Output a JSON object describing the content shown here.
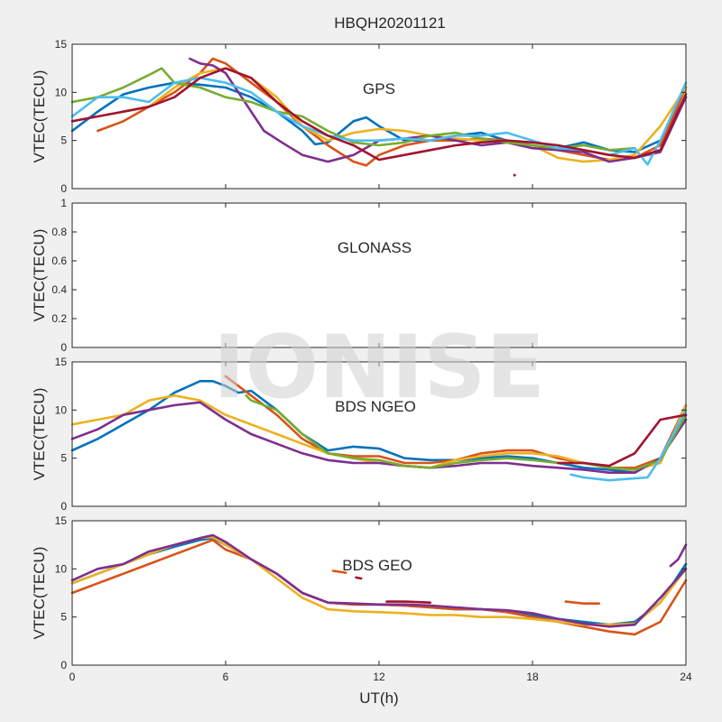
{
  "figure_title": "HBQH20201121",
  "watermark": "IONISE",
  "colors": {
    "blue": "#0072BD",
    "orange": "#D95319",
    "yellow": "#EDB120",
    "purple": "#7E2F8E",
    "green": "#77AC30",
    "cyan": "#4DBEEE",
    "maroon": "#A2142F",
    "background": "#f0f0f0",
    "axes_bg": "#ffffff",
    "watermark": "#cfcfcf"
  },
  "chart_data": [
    {
      "type": "line",
      "id": "gps",
      "title": "GPS",
      "xlabel": "",
      "ylabel": "VTEC(TECU)",
      "xlim": [
        0,
        24
      ],
      "ylim": [
        0,
        15
      ],
      "xticks": [
        0,
        6,
        12,
        18,
        24
      ],
      "xticklabels": [],
      "yticks": [
        0,
        5,
        10,
        15
      ],
      "yticklabels": [
        "0",
        "5",
        "10",
        "15"
      ],
      "series": [
        {
          "color": "blue",
          "x": [
            0,
            1,
            2,
            3,
            4,
            5,
            6,
            7,
            8,
            9,
            9.5,
            10,
            11,
            11.5,
            12,
            13,
            14,
            15,
            16,
            17,
            18,
            19,
            20,
            21,
            22,
            23,
            24
          ],
          "y": [
            6.0,
            8.0,
            9.8,
            10.5,
            11.0,
            10.8,
            10.5,
            9.5,
            8.0,
            6.0,
            4.6,
            4.8,
            7.0,
            7.4,
            6.5,
            5.0,
            5.0,
            5.5,
            5.8,
            5.0,
            4.5,
            4.2,
            4.8,
            4.0,
            3.8,
            5.0,
            9.5
          ]
        },
        {
          "color": "orange",
          "x": [
            1,
            2,
            3,
            4,
            5,
            5.5,
            6,
            7,
            8,
            9,
            10,
            11,
            11.5,
            12,
            13,
            14,
            15,
            16,
            17,
            18,
            19,
            20,
            21,
            22,
            23,
            24
          ],
          "y": [
            6.0,
            7.0,
            8.5,
            10.0,
            12.0,
            13.5,
            13.0,
            11.0,
            9.0,
            6.5,
            4.5,
            2.8,
            2.4,
            3.5,
            4.5,
            5.0,
            5.0,
            5.2,
            5.0,
            4.5,
            4.0,
            3.5,
            3.0,
            3.2,
            4.5,
            10.5
          ]
        },
        {
          "color": "yellow",
          "x": [
            2,
            3,
            4,
            5,
            6,
            7,
            8,
            9,
            10,
            11,
            12,
            13,
            14,
            15,
            16,
            17,
            18,
            19,
            20,
            21,
            22,
            23,
            24
          ],
          "y": [
            8.0,
            8.5,
            10.5,
            12.0,
            12.5,
            11.5,
            9.5,
            6.5,
            5.0,
            5.8,
            6.2,
            6.0,
            5.5,
            5.2,
            5.0,
            4.8,
            4.5,
            3.2,
            2.8,
            3.0,
            3.5,
            6.5,
            10.5
          ]
        },
        {
          "color": "purple",
          "x": [
            4.6,
            5,
            5.5,
            6,
            6.5,
            7,
            7.5,
            8.2,
            9,
            10,
            11,
            12,
            13,
            14,
            15,
            16,
            17,
            18,
            19,
            20,
            21,
            22,
            23,
            24
          ],
          "y": [
            13.5,
            13.0,
            12.8,
            12.0,
            10.0,
            8.0,
            6.0,
            4.8,
            3.5,
            2.8,
            3.5,
            5.0,
            5.2,
            5.5,
            5.0,
            4.5,
            4.8,
            4.2,
            4.0,
            3.8,
            2.8,
            3.2,
            3.8,
            9.5
          ]
        },
        {
          "color": "green",
          "x": [
            0,
            1,
            2,
            3,
            3.5,
            4,
            5,
            6,
            7,
            8,
            9,
            10,
            11,
            12,
            13,
            14,
            15,
            16,
            17,
            18,
            19,
            20,
            21,
            22
          ],
          "y": [
            9.0,
            9.5,
            10.5,
            11.8,
            12.5,
            11.0,
            10.5,
            9.5,
            9.0,
            8.0,
            7.5,
            6.0,
            4.8,
            4.5,
            4.8,
            5.5,
            5.8,
            5.2,
            4.8,
            4.5,
            4.2,
            4.5,
            4.0,
            4.2
          ]
        },
        {
          "color": "cyan",
          "x": [
            0,
            1,
            2,
            3,
            4,
            5,
            6,
            7,
            8,
            9,
            10,
            11,
            12,
            13,
            14,
            15,
            16,
            17,
            18,
            19,
            20,
            21,
            22,
            22.5,
            23,
            24
          ],
          "y": [
            7.5,
            9.5,
            9.5,
            9.0,
            11.0,
            11.5,
            11.0,
            10.0,
            8.0,
            6.5,
            5.5,
            5.0,
            5.0,
            5.2,
            5.0,
            5.5,
            5.5,
            5.8,
            5.0,
            4.2,
            4.0,
            3.5,
            4.2,
            2.5,
            5.0,
            11.0
          ]
        },
        {
          "color": "maroon",
          "x": [
            0,
            1,
            2,
            3,
            4,
            5,
            6,
            7,
            8,
            9,
            10,
            11,
            12,
            13,
            14,
            15,
            16,
            17,
            18,
            19,
            20,
            21,
            22,
            23,
            24
          ],
          "y": [
            7.0,
            7.5,
            8.0,
            8.5,
            9.5,
            11.5,
            12.5,
            11.5,
            9.0,
            7.0,
            5.5,
            4.5,
            3.0,
            3.5,
            4.0,
            4.5,
            4.8,
            5.0,
            4.8,
            4.5,
            4.0,
            3.5,
            3.2,
            4.0,
            9.8
          ]
        }
      ]
    },
    {
      "type": "line",
      "id": "glonass",
      "title": "GLONASS",
      "xlabel": "",
      "ylabel": "VTEC(TECU)",
      "xlim": [
        0,
        24
      ],
      "ylim": [
        0,
        1
      ],
      "xticks": [
        0,
        6,
        12,
        18,
        24
      ],
      "xticklabels": [],
      "yticks": [
        0,
        0.2,
        0.4,
        0.6,
        0.8,
        1
      ],
      "yticklabels": [
        "0",
        "0.2",
        "0.4",
        "0.6",
        "0.8",
        "1"
      ],
      "series": []
    },
    {
      "type": "line",
      "id": "bds-ngeo",
      "title": "BDS NGEO",
      "xlabel": "",
      "ylabel": "VTEC(TECU)",
      "xlim": [
        0,
        24
      ],
      "ylim": [
        0,
        15
      ],
      "xticks": [
        0,
        6,
        12,
        18,
        24
      ],
      "xticklabels": [],
      "yticks": [
        0,
        5,
        10,
        15
      ],
      "yticklabels": [
        "0",
        "5",
        "10",
        "15"
      ],
      "series": [
        {
          "color": "blue",
          "x": [
            0,
            1,
            2,
            3,
            4,
            5,
            5.5,
            6,
            6.5,
            7,
            8,
            9,
            10,
            11,
            12,
            13,
            14,
            15,
            16,
            17,
            18,
            19,
            20,
            21,
            22,
            23,
            24
          ],
          "y": [
            5.8,
            7.0,
            8.5,
            10.0,
            11.8,
            13.0,
            13.0,
            12.5,
            11.8,
            12.0,
            10.0,
            7.5,
            5.8,
            6.2,
            6.0,
            5.0,
            4.8,
            4.8,
            5.0,
            5.2,
            5.0,
            4.5,
            4.0,
            3.8,
            3.5,
            5.0,
            9.5
          ]
        },
        {
          "color": "orange",
          "x": [
            6,
            6.5,
            7,
            8,
            9,
            10,
            11,
            12,
            13,
            14,
            15,
            16,
            17,
            18,
            19,
            20,
            21,
            22,
            23,
            24
          ],
          "y": [
            13.5,
            12.5,
            11.5,
            9.5,
            7.0,
            5.5,
            5.2,
            5.2,
            4.5,
            4.5,
            4.8,
            5.5,
            5.8,
            5.8,
            5.0,
            4.5,
            4.0,
            4.0,
            5.0,
            10.5
          ]
        },
        {
          "color": "yellow",
          "x": [
            0,
            1,
            2,
            3,
            4,
            5,
            6,
            7,
            8,
            9,
            10,
            11,
            12,
            13,
            14,
            15,
            16,
            17,
            18,
            19,
            20,
            21,
            22,
            23,
            24
          ],
          "y": [
            8.5,
            9.0,
            9.5,
            11.0,
            11.5,
            11.0,
            9.5,
            8.5,
            7.5,
            6.5,
            5.5,
            5.0,
            4.5,
            4.2,
            4.0,
            4.8,
            5.2,
            5.5,
            5.5,
            5.2,
            4.5,
            4.0,
            3.8,
            4.5,
            10.5
          ]
        },
        {
          "color": "purple",
          "x": [
            0,
            1,
            2,
            3,
            4,
            5,
            6,
            7,
            8,
            9,
            10,
            11,
            12,
            13,
            14,
            15,
            16,
            17,
            18,
            19,
            20,
            21,
            22,
            23,
            24
          ],
          "y": [
            7.0,
            8.0,
            9.5,
            10.0,
            10.5,
            10.8,
            9.0,
            7.5,
            6.5,
            5.5,
            4.8,
            4.5,
            4.5,
            4.2,
            4.0,
            4.2,
            4.5,
            4.5,
            4.2,
            4.0,
            3.8,
            3.5,
            3.5,
            5.0,
            9.0
          ]
        },
        {
          "color": "green",
          "x": [
            6.8,
            7,
            8,
            9,
            10,
            11,
            12,
            13,
            14,
            15,
            16,
            17,
            18,
            19,
            20,
            21,
            22,
            23,
            24
          ],
          "y": [
            11.5,
            11.0,
            10.0,
            7.5,
            5.5,
            5.0,
            4.8,
            4.2,
            4.0,
            4.5,
            4.8,
            5.0,
            4.8,
            4.5,
            4.5,
            4.0,
            3.8,
            4.8,
            9.5
          ]
        },
        {
          "color": "cyan",
          "x": [
            19.5,
            20,
            21,
            22,
            22.5,
            23,
            24
          ],
          "y": [
            3.3,
            3.0,
            2.7,
            2.9,
            3.0,
            5.0,
            10.0
          ]
        },
        {
          "color": "maroon",
          "x": [
            19,
            20,
            21,
            22,
            23,
            24
          ],
          "y": [
            4.5,
            4.5,
            4.2,
            5.5,
            9.0,
            9.5
          ]
        }
      ]
    },
    {
      "type": "line",
      "id": "bds-geo",
      "title": "BDS GEO",
      "xlabel": "UT(h)",
      "ylabel": "VTEC(TECU)",
      "xlim": [
        0,
        24
      ],
      "ylim": [
        0,
        15
      ],
      "xticks": [
        0,
        6,
        12,
        18,
        24
      ],
      "xticklabels": [
        "0",
        "6",
        "12",
        "18",
        "24"
      ],
      "yticks": [
        0,
        5,
        10,
        15
      ],
      "yticklabels": [
        "0",
        "5",
        "10",
        "15"
      ],
      "series": [
        {
          "color": "blue",
          "x": [
            0,
            1,
            2,
            3,
            4,
            5,
            5.5,
            6,
            7,
            8,
            9,
            10,
            11,
            12,
            13,
            14,
            15,
            16,
            17,
            18,
            19,
            20,
            21,
            22,
            23,
            24
          ],
          "y": [
            8.5,
            9.5,
            10.5,
            11.5,
            12.3,
            13.0,
            13.2,
            12.5,
            11.0,
            9.5,
            7.5,
            6.5,
            6.3,
            6.3,
            6.2,
            6.0,
            5.8,
            5.8,
            5.6,
            5.2,
            4.8,
            4.5,
            4.2,
            4.5,
            6.5,
            10.5
          ]
        },
        {
          "color": "orange",
          "x": [
            0,
            1,
            2,
            3,
            4,
            5,
            5.5,
            6,
            7,
            8,
            9,
            10,
            11,
            12,
            13,
            14,
            15,
            16,
            17,
            18,
            19,
            20,
            21,
            22,
            23,
            24
          ],
          "y": [
            7.5,
            8.5,
            9.5,
            10.5,
            11.5,
            12.5,
            13.0,
            12.0,
            11.0,
            9.5,
            7.5,
            6.5,
            6.3,
            6.3,
            6.2,
            6.0,
            5.8,
            5.8,
            5.5,
            5.0,
            4.5,
            4.0,
            3.5,
            3.2,
            4.5,
            8.8
          ]
        },
        {
          "color": "yellow",
          "x": [
            0,
            1,
            2,
            3,
            4,
            5,
            5.5,
            6,
            7,
            8,
            9,
            10,
            11,
            12,
            13,
            14,
            15,
            16,
            17,
            18,
            19,
            20,
            21,
            22,
            23,
            24
          ],
          "y": [
            8.5,
            9.5,
            10.5,
            11.5,
            12.5,
            13.2,
            13.3,
            12.5,
            11.0,
            9.0,
            7.0,
            5.8,
            5.6,
            5.5,
            5.4,
            5.2,
            5.2,
            5.0,
            5.0,
            4.8,
            4.5,
            4.2,
            4.2,
            4.3,
            6.5,
            10.0
          ]
        },
        {
          "color": "purple",
          "x": [
            0,
            1,
            2,
            3,
            4,
            5,
            5.5,
            6,
            7,
            8,
            9,
            10,
            11,
            12,
            13,
            14,
            15,
            16,
            17,
            18,
            19,
            20,
            21,
            22,
            23,
            24
          ],
          "y": [
            8.8,
            10.0,
            10.5,
            11.8,
            12.5,
            13.2,
            13.5,
            12.8,
            11.0,
            9.5,
            7.5,
            6.5,
            6.4,
            6.3,
            6.3,
            6.2,
            6.0,
            5.8,
            5.7,
            5.4,
            4.8,
            4.3,
            4.0,
            4.2,
            7.0,
            10.0
          ]
        },
        {
          "color": "maroon",
          "x": [
            12.3,
            13,
            14
          ],
          "y": [
            6.6,
            6.6,
            6.5
          ]
        },
        {
          "color": "orange",
          "x": [
            19.3,
            20,
            20.6
          ],
          "y": [
            6.6,
            6.4,
            6.4
          ]
        },
        {
          "color": "orange",
          "x": [
            10.2,
            10.7
          ],
          "y": [
            9.8,
            9.6
          ]
        },
        {
          "color": "maroon",
          "x": [
            11.1,
            11.3
          ],
          "y": [
            9.1,
            9.0
          ]
        },
        {
          "color": "purple",
          "x": [
            23.4,
            23.7,
            24
          ],
          "y": [
            10.3,
            11.0,
            12.5
          ]
        }
      ]
    }
  ]
}
